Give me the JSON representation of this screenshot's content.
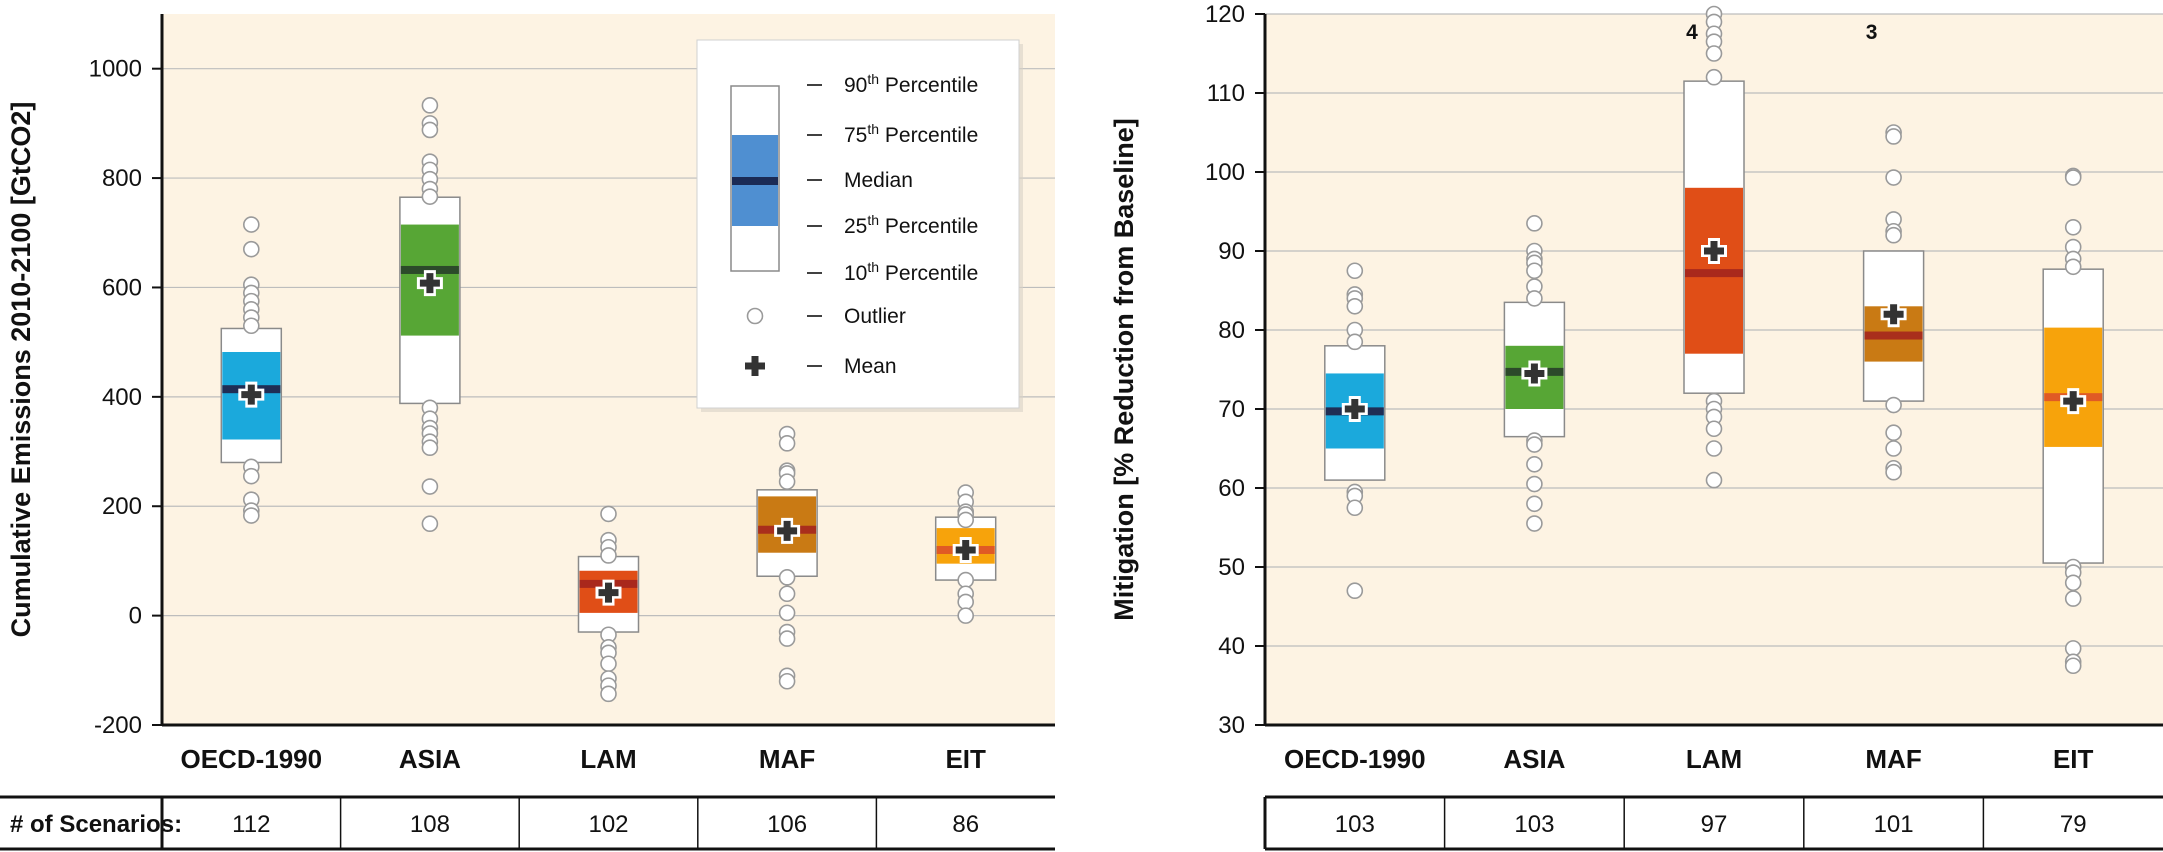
{
  "colors": {
    "plot_bg": "#fdf3e3",
    "grid": "#bdbdbd",
    "OECD-1990": {
      "iqr": "#1ba9dc",
      "median": "#1f2e55"
    },
    "ASIA": {
      "iqr": "#57a635",
      "median": "#2c4a2a"
    },
    "LAM": {
      "iqr": "#e04e17",
      "median": "#a9281c"
    },
    "MAF": {
      "iqr": "#c97a14",
      "median": "#a92e1c"
    },
    "EIT": {
      "iqr": "#f7a30b",
      "median": "#e05a25"
    },
    "legend_iqr": "#4f8fd1",
    "legend_median": "#1b2b55"
  },
  "count_row_label": "# of Scenarios:",
  "legend": {
    "items": [
      "90th Percentile",
      "75th Percentile",
      "Median",
      "25th Percentile",
      "10th Percentile",
      "Outlier",
      "Mean"
    ],
    "icons": {
      "outlier": "circle-icon",
      "mean": "plus-icon"
    }
  },
  "chart_data": [
    {
      "type": "boxplot",
      "ylabel": "Cumulative Emissions 2010-2100 [GtCO2]",
      "ylim": [
        -200,
        1100
      ],
      "yticks": [
        -200,
        0,
        200,
        400,
        600,
        800,
        1000
      ],
      "grid": true,
      "legend_position": "top-right",
      "categories": [
        "OECD-1990",
        "ASIA",
        "LAM",
        "MAF",
        "EIT"
      ],
      "scenarios": [
        112,
        108,
        102,
        106,
        86
      ],
      "boxes": [
        {
          "p10": 280,
          "p25": 322,
          "median": 414,
          "p75": 482,
          "p90": 525,
          "mean": 404,
          "outliers": [
            715,
            670,
            605,
            590,
            575,
            560,
            545,
            530,
            272,
            255,
            212,
            192,
            183
          ]
        },
        {
          "p10": 388,
          "p25": 512,
          "median": 632,
          "p75": 715,
          "p90": 765,
          "mean": 608,
          "outliers": [
            933,
            900,
            888,
            830,
            815,
            798,
            780,
            766,
            380,
            360,
            343,
            333,
            318,
            307,
            236,
            168
          ]
        },
        {
          "p10": -30,
          "p25": 5,
          "median": 58,
          "p75": 82,
          "p90": 108,
          "mean": 42,
          "outliers": [
            186,
            138,
            125,
            110,
            -35,
            -58,
            -68,
            -88,
            -115,
            -128,
            -143
          ]
        },
        {
          "p10": 72,
          "p25": 115,
          "median": 157,
          "p75": 218,
          "p90": 230,
          "mean": 155,
          "outliers": [
            332,
            315,
            265,
            260,
            245,
            70,
            40,
            5,
            -30,
            -42,
            -110,
            -120
          ]
        },
        {
          "p10": 65,
          "p25": 95,
          "median": 120,
          "p75": 160,
          "p90": 180,
          "mean": 120,
          "outliers": [
            225,
            208,
            190,
            185,
            175,
            65,
            40,
            25,
            0
          ]
        }
      ]
    },
    {
      "type": "boxplot",
      "ylabel": "Mitigation [% Reduction from Baseline]",
      "ylim": [
        30,
        120
      ],
      "yticks": [
        30,
        40,
        50,
        60,
        70,
        80,
        90,
        100,
        110,
        120
      ],
      "grid": true,
      "categories": [
        "OECD-1990",
        "ASIA",
        "LAM",
        "MAF",
        "EIT"
      ],
      "scenarios": [
        103,
        103,
        97,
        101,
        79
      ],
      "offscale_counts": [
        null,
        null,
        4,
        3,
        null
      ],
      "boxes": [
        {
          "p10": 61,
          "p25": 65,
          "median": 69.7,
          "p75": 74.5,
          "p90": 78,
          "mean": 70,
          "outliers": [
            87.5,
            84.5,
            84,
            83,
            80,
            78.5,
            59.5,
            59,
            57.5,
            47
          ]
        },
        {
          "p10": 66.5,
          "p25": 70,
          "median": 74.7,
          "p75": 78,
          "p90": 83.5,
          "mean": 74.5,
          "outliers": [
            93.5,
            90,
            89,
            88.5,
            87.5,
            85.5,
            84,
            66,
            65.5,
            63,
            60.5,
            58,
            55.5
          ]
        },
        {
          "p10": 72,
          "p25": 77,
          "median": 87.2,
          "p75": 98,
          "p90": 111.5,
          "mean": 90,
          "outliers": [
            120,
            119,
            117.5,
            116.5,
            115,
            112,
            71,
            70,
            69,
            67.5,
            65,
            61
          ]
        },
        {
          "p10": 71,
          "p25": 76,
          "median": 79.3,
          "p75": 83,
          "p90": 90,
          "mean": 82,
          "outliers": [
            105,
            104.5,
            99.3,
            94,
            92.5,
            92,
            70.5,
            67,
            65,
            62.5,
            62
          ]
        },
        {
          "p10": 50.5,
          "p25": 65.2,
          "median": 71.5,
          "p75": 80.3,
          "p90": 87.7,
          "mean": 71,
          "outliers": [
            99.5,
            99.3,
            93,
            90.5,
            89,
            88,
            50,
            49.3,
            48,
            46,
            39.7,
            38,
            37.5
          ]
        }
      ]
    }
  ]
}
